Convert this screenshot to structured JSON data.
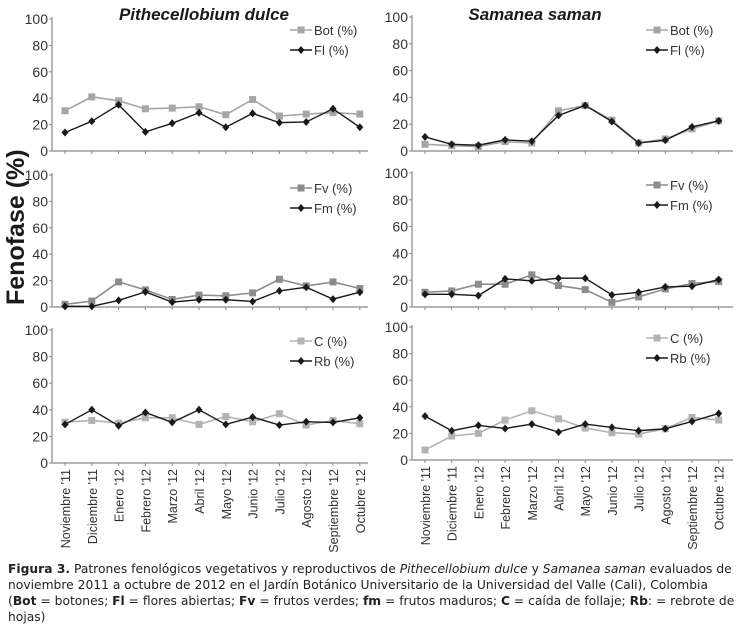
{
  "chart_data": [
    {
      "type": "line",
      "panel": "top-left",
      "title": "Pithecellobium dulce",
      "xlabel": "",
      "ylabel": "Fenofase (%)",
      "ylim": [
        0,
        100
      ],
      "yticks": [
        0,
        20,
        40,
        60,
        80,
        100
      ],
      "grid": false,
      "legend": "top-right",
      "categories": [
        "Noviembre '11",
        "Diciembre '11",
        "Enero '12",
        "Febrero '12",
        "Marzo '12",
        "Abril '12",
        "Mayo '12",
        "Junio '12",
        "Julio '12",
        "Agosto '12",
        "Septiembre '12",
        "Octubre '12"
      ],
      "series": [
        {
          "name": "Bot (%)",
          "color": "#a6a6a6",
          "marker": "square",
          "values": [
            30.5,
            41,
            38,
            32,
            32.5,
            33.5,
            27.5,
            39,
            26.5,
            28,
            29,
            28
          ]
        },
        {
          "name": "Fl (%)",
          "color": "#1a1a1a",
          "marker": "diamond",
          "values": [
            14,
            22.5,
            35,
            14.5,
            21,
            29,
            18,
            28.5,
            21.5,
            22,
            32,
            18
          ]
        }
      ]
    },
    {
      "type": "line",
      "panel": "top-right",
      "title": "Samanea saman",
      "xlabel": "",
      "ylabel": "Fenofase (%)",
      "ylim": [
        0,
        100
      ],
      "yticks": [
        0,
        20,
        40,
        60,
        80,
        100
      ],
      "grid": false,
      "legend": "top-right",
      "categories": [
        "Noviembre '11",
        "Diciembre '11",
        "Enero '12",
        "Febrero '12",
        "Marzo '12",
        "Abril '12",
        "Mayo '12",
        "Junio '12",
        "Julio '12",
        "Agosto '12",
        "Septiembre '12",
        "Octubre '12"
      ],
      "series": [
        {
          "name": "Bot (%)",
          "color": "#a6a6a6",
          "marker": "square",
          "values": [
            5,
            4,
            3.3,
            7,
            6,
            30,
            34,
            23,
            6,
            9,
            16.5,
            22.5
          ]
        },
        {
          "name": "Fl (%)",
          "color": "#1a1a1a",
          "marker": "diamond",
          "values": [
            10.5,
            5,
            4.3,
            8.3,
            7.3,
            26.5,
            34,
            22,
            6,
            8,
            18,
            22.5
          ]
        }
      ]
    },
    {
      "type": "line",
      "panel": "middle-left",
      "title": "",
      "xlabel": "",
      "ylabel": "Fenofase (%)",
      "ylim": [
        0,
        100
      ],
      "yticks": [
        0,
        20,
        40,
        60,
        80,
        100
      ],
      "grid": false,
      "legend": "top-right",
      "categories": [
        "Noviembre '11",
        "Diciembre '11",
        "Enero '12",
        "Febrero '12",
        "Marzo '12",
        "Abril '12",
        "Mayo '12",
        "Junio '12",
        "Julio '12",
        "Agosto '12",
        "Septiembre '12",
        "Octubre '12"
      ],
      "series": [
        {
          "name": "Fv (%)",
          "color": "#8c8c8c",
          "marker": "square",
          "values": [
            2,
            4.5,
            19,
            13,
            5.7,
            9,
            8.5,
            10.7,
            21,
            16,
            19,
            14
          ]
        },
        {
          "name": "Fm  (%)",
          "color": "#1a1a1a",
          "marker": "diamond",
          "values": [
            0.5,
            0.5,
            5,
            11.5,
            3.7,
            5.5,
            5.5,
            4.2,
            12.2,
            15,
            6,
            11.2
          ]
        }
      ]
    },
    {
      "type": "line",
      "panel": "middle-right",
      "title": "",
      "xlabel": "",
      "ylabel": "Fenofase (%)",
      "ylim": [
        0,
        100
      ],
      "yticks": [
        0,
        20,
        40,
        60,
        80,
        100
      ],
      "grid": false,
      "legend": "top-right",
      "categories": [
        "Noviembre '11",
        "Diciembre '11",
        "Enero '12",
        "Febrero '12",
        "Marzo '12",
        "Abril '12",
        "Mayo '12",
        "Junio '12",
        "Julio '12",
        "Agosto '12",
        "Septiembre '12",
        "Octubre '12"
      ],
      "series": [
        {
          "name": "Fv (%)",
          "color": "#8c8c8c",
          "marker": "square",
          "values": [
            11,
            12,
            17,
            17,
            24,
            16,
            13,
            3.5,
            7.5,
            13.5,
            17.5,
            19
          ]
        },
        {
          "name": "Fm (%)",
          "color": "#1a1a1a",
          "marker": "diamond",
          "values": [
            9.5,
            9.5,
            8.5,
            21,
            19.5,
            21.5,
            21.5,
            9,
            11,
            15,
            15.5,
            20.5
          ]
        }
      ]
    },
    {
      "type": "line",
      "panel": "bottom-left",
      "title": "",
      "xlabel": "",
      "ylabel": "Fenofase (%)",
      "ylim": [
        0,
        100
      ],
      "yticks": [
        0,
        20,
        40,
        60,
        80,
        100
      ],
      "grid": false,
      "legend": "top-right",
      "categories": [
        "Noviembre '11",
        "Diciembre '11",
        "Enero '12",
        "Febrero '12",
        "Marzo '12",
        "Abril '12",
        "Mayo '12",
        "Junio '12",
        "Julio '12",
        "Agosto '12",
        "Septiembre '12",
        "Octubre '12"
      ],
      "series": [
        {
          "name": "C (%)",
          "color": "#b3b3b3",
          "marker": "square",
          "values": [
            30.7,
            32,
            30,
            34,
            34,
            29,
            35,
            31,
            37,
            28.5,
            32,
            29.5
          ]
        },
        {
          "name": "Rb (%)",
          "color": "#1a1a1a",
          "marker": "diamond",
          "values": [
            29,
            40,
            28,
            38,
            30.5,
            40,
            29,
            34.5,
            28.5,
            31,
            30.5,
            34
          ]
        }
      ]
    },
    {
      "type": "line",
      "panel": "bottom-right",
      "title": "",
      "xlabel": "",
      "ylabel": "Fenofase (%)",
      "ylim": [
        0,
        100
      ],
      "yticks": [
        0,
        20,
        40,
        60,
        80,
        100
      ],
      "grid": false,
      "legend": "top-right",
      "categories": [
        "Noviembre '11",
        "Diciembre '11",
        "Enero '12",
        "Febrero '12",
        "Marzo '12",
        "Abril '12",
        "Mayo '12",
        "Junio '12",
        "Julio '12",
        "Agosto '12",
        "Septiembre '12",
        "Octubre '12"
      ],
      "series": [
        {
          "name": "C (%)",
          "color": "#b3b3b3",
          "marker": "square",
          "values": [
            7.5,
            18,
            20,
            30,
            37,
            31,
            24,
            20.5,
            19.5,
            23.5,
            32,
            30
          ]
        },
        {
          "name": "Rb (%)",
          "color": "#1a1a1a",
          "marker": "diamond",
          "values": [
            33,
            22,
            26,
            23.7,
            27,
            21,
            27,
            24.5,
            22,
            23.5,
            29,
            35
          ]
        }
      ]
    }
  ],
  "shared_ylabel": "Fenofase (%)",
  "caption": {
    "label": "Figura 3.",
    "part1": " Patrones fenológicos vegetativos y reproductivos de ",
    "species1": "Pithecellobium dulce",
    "part2": " y ",
    "species2": "Samanea saman",
    "part3": " evaluados de noviembre 2011 a octubre de 2012 en el Jardín Botánico Universitario de la Universidad del Valle (Cali), Colombia (",
    "abbr_bot": "Bot",
    "def_bot": " = botones; ",
    "abbr_fl": "Fl",
    "def_fl": " = flores abiertas; ",
    "abbr_fv": "Fv",
    "def_fv": " = frutos verdes; ",
    "abbr_fm": "fm",
    "def_fm": " = frutos maduros; ",
    "abbr_c": "C",
    "def_c": " = caída de follaje; ",
    "abbr_rb": "Rb",
    "def_rb": ": =  rebrote de hojas)"
  }
}
